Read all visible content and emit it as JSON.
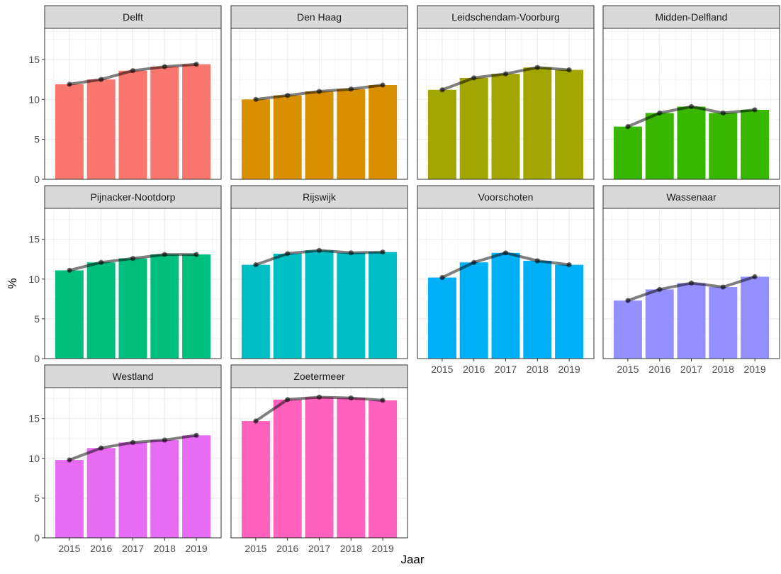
{
  "chart_data": {
    "type": "bar",
    "title": "",
    "xlabel": "Jaar",
    "ylabel": "%",
    "ylim": [
      0,
      18.9
    ],
    "y_ticks": [
      "0",
      "5",
      "10",
      "15"
    ],
    "categories": [
      "2015",
      "2016",
      "2017",
      "2018",
      "2019"
    ],
    "grid": true,
    "layout": "facet grid, 4 columns",
    "overlay": "line with points, same values",
    "facets": [
      {
        "name": "Delft",
        "color": "#F8766D",
        "values": [
          11.9,
          12.5,
          13.6,
          14.1,
          14.4
        ]
      },
      {
        "name": "Den Haag",
        "color": "#D89000",
        "values": [
          10.0,
          10.5,
          11.0,
          11.3,
          11.8
        ]
      },
      {
        "name": "Leidschendam-Voorburg",
        "color": "#A3A500",
        "values": [
          11.2,
          12.7,
          13.2,
          14.0,
          13.7
        ]
      },
      {
        "name": "Midden-Delfland",
        "color": "#39B600",
        "values": [
          6.6,
          8.3,
          9.1,
          8.3,
          8.7
        ]
      },
      {
        "name": "Pijnacker-Nootdorp",
        "color": "#00BF7D",
        "values": [
          11.1,
          12.1,
          12.6,
          13.1,
          13.1
        ]
      },
      {
        "name": "Rijswijk",
        "color": "#00BFC4",
        "values": [
          11.8,
          13.2,
          13.6,
          13.3,
          13.4
        ]
      },
      {
        "name": "Voorschoten",
        "color": "#00B0F6",
        "values": [
          10.2,
          12.1,
          13.3,
          12.3,
          11.8
        ]
      },
      {
        "name": "Wassenaar",
        "color": "#9590FF",
        "values": [
          7.3,
          8.7,
          9.5,
          9.0,
          10.3
        ]
      },
      {
        "name": "Westland",
        "color": "#E76BF3",
        "values": [
          9.8,
          11.3,
          12.0,
          12.3,
          12.9
        ]
      },
      {
        "name": "Zoetermeer",
        "color": "#FF62BC",
        "values": [
          14.7,
          17.4,
          17.7,
          17.6,
          17.3
        ]
      }
    ]
  }
}
